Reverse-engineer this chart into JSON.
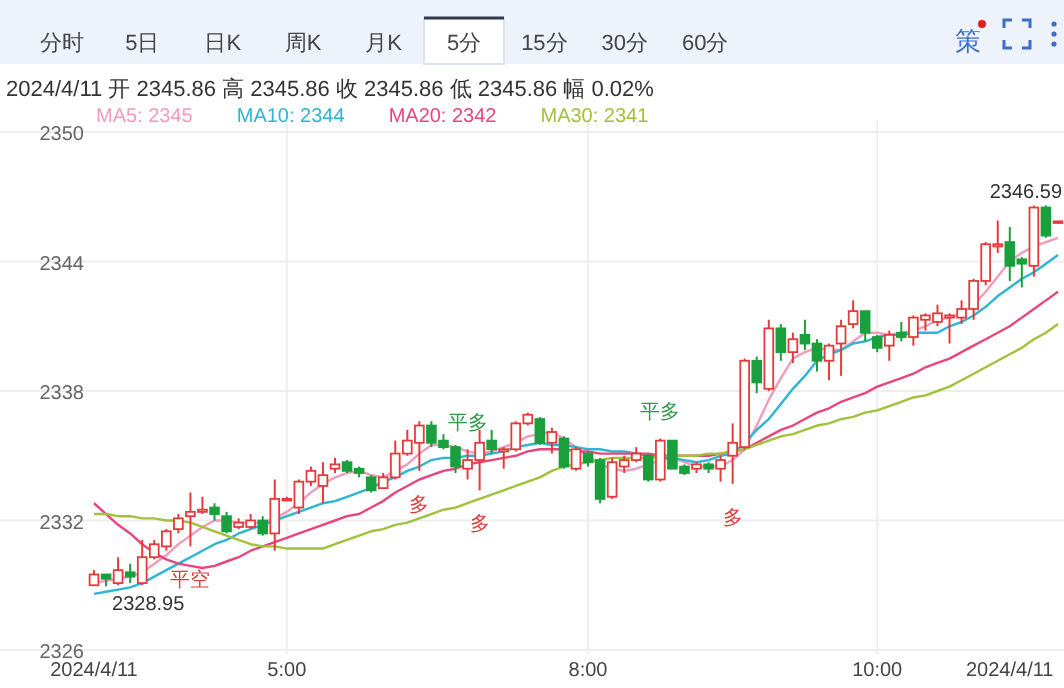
{
  "chart_data": {
    "type": "candlestick",
    "title": "2024/4/11  开 2345.86  高 2345.86  收 2345.86  低 2345.86  幅 0.02%",
    "categories": [
      "2024/4/11",
      null,
      null,
      null,
      null,
      null,
      null,
      null,
      null,
      null,
      null,
      null,
      null,
      null,
      null,
      null,
      "5:00",
      null,
      null,
      null,
      null,
      null,
      null,
      null,
      null,
      null,
      null,
      null,
      null,
      null,
      null,
      null,
      null,
      null,
      null,
      null,
      null,
      null,
      null,
      null,
      null,
      "8:00",
      null,
      null,
      null,
      null,
      null,
      null,
      null,
      null,
      null,
      null,
      null,
      null,
      null,
      null,
      null,
      null,
      null,
      null,
      null,
      null,
      null,
      null,
      null,
      "10:00",
      null,
      null,
      null,
      null,
      null,
      null,
      null,
      null,
      null,
      null,
      "2024/4/11",
      null,
      null,
      null,
      null
    ],
    "ohlc": [
      [
        2329.0,
        2329.7,
        2329.0,
        2329.5
      ],
      [
        2329.5,
        2329.5,
        2328.95,
        2329.3
      ],
      [
        2329.1,
        2330.3,
        2329.0,
        2329.7
      ],
      [
        2329.6,
        2330.0,
        2329.1,
        2329.4
      ],
      [
        2329.1,
        2331.1,
        2329.0,
        2330.3
      ],
      [
        2330.3,
        2331.1,
        2330.2,
        2330.9
      ],
      [
        2330.8,
        2331.6,
        2330.6,
        2331.5
      ],
      [
        2331.6,
        2332.3,
        2331.4,
        2332.1
      ],
      [
        2332.2,
        2333.3,
        2330.8,
        2332.4
      ],
      [
        2332.4,
        2333.1,
        2332.3,
        2332.5
      ],
      [
        2332.6,
        2332.8,
        2332.0,
        2332.3
      ],
      [
        2332.2,
        2332.4,
        2331.4,
        2331.5
      ],
      [
        2331.7,
        2332.1,
        2331.6,
        2331.9
      ],
      [
        2331.7,
        2332.3,
        2331.6,
        2332.0
      ],
      [
        2332.0,
        2332.2,
        2331.3,
        2331.4
      ],
      [
        2331.4,
        2333.9,
        2330.6,
        2333.0
      ],
      [
        2333.0,
        2333.1,
        2332.9,
        2333.0
      ],
      [
        2332.6,
        2333.9,
        2332.3,
        2333.8
      ],
      [
        2333.8,
        2334.5,
        2333.6,
        2334.3
      ],
      [
        2333.6,
        2334.7,
        2332.8,
        2334.1
      ],
      [
        2334.4,
        2334.9,
        2334.2,
        2334.6
      ],
      [
        2334.7,
        2334.8,
        2334.2,
        2334.3
      ],
      [
        2334.4,
        2334.5,
        2334.0,
        2334.2
      ],
      [
        2334.0,
        2334.1,
        2333.3,
        2333.4
      ],
      [
        2333.5,
        2334.2,
        2333.5,
        2334.0
      ],
      [
        2334.0,
        2335.7,
        2333.9,
        2335.1
      ],
      [
        2335.1,
        2336.2,
        2335.0,
        2335.7
      ],
      [
        2335.6,
        2336.6,
        2334.3,
        2336.4
      ],
      [
        2336.4,
        2336.6,
        2335.4,
        2335.6
      ],
      [
        2335.7,
        2336.0,
        2335.3,
        2335.4
      ],
      [
        2335.4,
        2335.5,
        2334.2,
        2334.5
      ],
      [
        2334.4,
        2335.3,
        2333.9,
        2334.8
      ],
      [
        2334.8,
        2336.2,
        2333.4,
        2335.6
      ],
      [
        2335.7,
        2336.2,
        2335.1,
        2335.3
      ],
      [
        2335.2,
        2335.4,
        2334.4,
        2335.3
      ],
      [
        2335.3,
        2336.6,
        2335.2,
        2336.5
      ],
      [
        2336.5,
        2337.0,
        2336.4,
        2336.9
      ],
      [
        2336.7,
        2336.8,
        2335.5,
        2335.6
      ],
      [
        2335.6,
        2336.3,
        2335.1,
        2336.1
      ],
      [
        2335.8,
        2335.9,
        2334.4,
        2334.5
      ],
      [
        2334.4,
        2335.4,
        2334.3,
        2335.3
      ],
      [
        2335.1,
        2335.2,
        2334.5,
        2334.7
      ],
      [
        2334.8,
        2334.9,
        2332.8,
        2333.0
      ],
      [
        2333.1,
        2334.9,
        2333.0,
        2334.7
      ],
      [
        2334.5,
        2335.0,
        2334.2,
        2334.8
      ],
      [
        2334.8,
        2335.4,
        2334.7,
        2335.1
      ],
      [
        2335.0,
        2335.1,
        2333.8,
        2333.9
      ],
      [
        2333.9,
        2335.8,
        2333.8,
        2335.7
      ],
      [
        2335.7,
        2335.7,
        2334.4,
        2334.4
      ],
      [
        2334.5,
        2334.6,
        2334.1,
        2334.2
      ],
      [
        2334.4,
        2334.7,
        2334.2,
        2334.6
      ],
      [
        2334.6,
        2334.7,
        2334.2,
        2334.4
      ],
      [
        2334.4,
        2335.0,
        2333.8,
        2334.8
      ],
      [
        2335.0,
        2336.5,
        2333.7,
        2335.6
      ],
      [
        2335.4,
        2339.5,
        2335.3,
        2339.4
      ],
      [
        2339.4,
        2339.6,
        2337.9,
        2338.4
      ],
      [
        2338.1,
        2341.3,
        2338.0,
        2340.9
      ],
      [
        2340.9,
        2341.1,
        2339.4,
        2339.8
      ],
      [
        2339.8,
        2340.7,
        2339.3,
        2340.4
      ],
      [
        2340.6,
        2341.3,
        2339.9,
        2340.2
      ],
      [
        2340.2,
        2340.4,
        2338.9,
        2339.4
      ],
      [
        2339.4,
        2340.2,
        2338.5,
        2340.1
      ],
      [
        2340.2,
        2341.3,
        2338.7,
        2341.0
      ],
      [
        2341.1,
        2342.2,
        2340.9,
        2341.7
      ],
      [
        2341.7,
        2341.7,
        2340.3,
        2340.7
      ],
      [
        2340.5,
        2340.6,
        2339.8,
        2340.0
      ],
      [
        2340.1,
        2340.8,
        2339.4,
        2340.6
      ],
      [
        2340.7,
        2341.2,
        2340.3,
        2340.5
      ],
      [
        2340.5,
        2341.5,
        2340.1,
        2341.4
      ],
      [
        2341.3,
        2341.6,
        2340.8,
        2341.5
      ],
      [
        2341.2,
        2342.0,
        2341.0,
        2341.6
      ],
      [
        2341.4,
        2341.6,
        2340.2,
        2341.5
      ],
      [
        2341.4,
        2342.2,
        2341.1,
        2341.8
      ],
      [
        2341.8,
        2343.2,
        2341.3,
        2343.1
      ],
      [
        2343.1,
        2344.9,
        2342.9,
        2344.8
      ],
      [
        2344.7,
        2345.9,
        2344.4,
        2344.8
      ],
      [
        2344.9,
        2345.6,
        2343.1,
        2343.8
      ],
      [
        2344.1,
        2344.2,
        2342.8,
        2343.9
      ],
      [
        2343.8,
        2346.59,
        2343.3,
        2346.5
      ],
      [
        2346.5,
        2346.6,
        2345.1,
        2345.2
      ],
      [
        2345.86,
        2345.86,
        2345.86,
        2345.86
      ]
    ],
    "series": [
      {
        "type": "line",
        "name": "MA5: 2345",
        "color": "#f29bbd",
        "values": [
          2329.1,
          2329.2,
          2329.3,
          2329.4,
          2329.6,
          2330.0,
          2330.4,
          2330.9,
          2331.3,
          2331.7,
          2332.0,
          2332.0,
          2331.9,
          2331.9,
          2331.9,
          2332.1,
          2332.4,
          2332.8,
          2333.3,
          2333.7,
          2334.0,
          2334.2,
          2334.3,
          2334.1,
          2334.0,
          2334.3,
          2334.6,
          2335.1,
          2335.5,
          2335.5,
          2335.4,
          2335.2,
          2335.1,
          2335.2,
          2335.4,
          2335.6,
          2335.9,
          2336.0,
          2336.1,
          2335.8,
          2335.4,
          2335.0,
          2334.6,
          2334.4,
          2334.3,
          2334.4,
          2334.6,
          2334.8,
          2334.9,
          2334.7,
          2334.5,
          2334.5,
          2334.5,
          2334.8,
          2335.3,
          2336.4,
          2337.6,
          2338.6,
          2339.5,
          2339.8,
          2340.0,
          2339.9,
          2339.9,
          2340.3,
          2340.7,
          2340.7,
          2340.6,
          2340.7,
          2340.8,
          2341.0,
          2341.3,
          2341.4,
          2341.6,
          2342.0,
          2342.6,
          2343.3,
          2344.0,
          2344.4,
          2344.7,
          2344.9,
          2345.1
        ]
      },
      {
        "type": "line",
        "name": "MA10: 2344",
        "color": "#2db5d3",
        "values": [
          2328.6,
          2328.7,
          2328.8,
          2328.9,
          2329.1,
          2329.4,
          2329.7,
          2330.0,
          2330.3,
          2330.6,
          2330.9,
          2331.1,
          2331.4,
          2331.6,
          2331.8,
          2332.0,
          2332.2,
          2332.4,
          2332.6,
          2332.8,
          2332.9,
          2333.1,
          2333.3,
          2333.5,
          2333.8,
          2334.0,
          2334.3,
          2334.5,
          2334.8,
          2334.9,
          2334.9,
          2335.0,
          2335.0,
          2335.1,
          2335.2,
          2335.4,
          2335.5,
          2335.6,
          2335.5,
          2335.5,
          2335.4,
          2335.3,
          2335.3,
          2335.2,
          2335.2,
          2335.1,
          2335.0,
          2334.9,
          2334.9,
          2334.8,
          2334.7,
          2334.8,
          2335.0,
          2335.1,
          2335.6,
          2336.2,
          2336.7,
          2337.4,
          2338.1,
          2338.7,
          2339.4,
          2339.7,
          2339.9,
          2340.2,
          2340.3,
          2340.5,
          2340.6,
          2340.6,
          2340.7,
          2340.7,
          2340.7,
          2341.0,
          2341.2,
          2341.5,
          2341.9,
          2342.4,
          2342.8,
          2343.2,
          2343.5,
          2343.9,
          2344.3
        ]
      },
      {
        "type": "line",
        "name": "MA20: 2342",
        "color": "#e8457f",
        "values": [
          2332.8,
          2332.3,
          2331.8,
          2331.4,
          2330.9,
          2330.5,
          2330.2,
          2330.0,
          2329.9,
          2329.8,
          2329.9,
          2330.1,
          2330.3,
          2330.6,
          2330.8,
          2331.0,
          2331.2,
          2331.4,
          2331.6,
          2331.8,
          2332.0,
          2332.2,
          2332.3,
          2332.6,
          2332.9,
          2333.3,
          2333.6,
          2333.9,
          2334.1,
          2334.3,
          2334.4,
          2334.6,
          2334.7,
          2334.8,
          2334.9,
          2335.0,
          2335.2,
          2335.3,
          2335.3,
          2335.3,
          2335.2,
          2335.2,
          2335.1,
          2335.1,
          2335.1,
          2335.1,
          2335.1,
          2335.0,
          2335.0,
          2335.0,
          2335.0,
          2335.0,
          2335.1,
          2335.2,
          2335.3,
          2335.6,
          2335.9,
          2336.2,
          2336.4,
          2336.7,
          2337.0,
          2337.2,
          2337.5,
          2337.7,
          2337.9,
          2338.2,
          2338.4,
          2338.6,
          2338.8,
          2339.1,
          2339.3,
          2339.5,
          2339.8,
          2340.1,
          2340.4,
          2340.7,
          2341.0,
          2341.4,
          2341.8,
          2342.2,
          2342.6
        ]
      },
      {
        "type": "line",
        "name": "MA30: 2341",
        "color": "#a2c13b",
        "values": [
          2332.3,
          2332.3,
          2332.2,
          2332.2,
          2332.1,
          2332.1,
          2332.0,
          2332.0,
          2331.9,
          2331.7,
          2331.5,
          2331.3,
          2331.1,
          2330.9,
          2330.8,
          2330.8,
          2330.7,
          2330.7,
          2330.7,
          2330.7,
          2330.9,
          2331.1,
          2331.3,
          2331.5,
          2331.6,
          2331.8,
          2331.9,
          2332.1,
          2332.3,
          2332.5,
          2332.6,
          2332.8,
          2333.0,
          2333.2,
          2333.4,
          2333.6,
          2333.8,
          2334.0,
          2334.3,
          2334.5,
          2334.6,
          2334.7,
          2334.8,
          2334.9,
          2334.9,
          2334.9,
          2334.9,
          2335.0,
          2335.0,
          2335.0,
          2335.0,
          2335.1,
          2335.1,
          2335.2,
          2335.3,
          2335.5,
          2335.7,
          2335.9,
          2336.0,
          2336.2,
          2336.4,
          2336.5,
          2336.7,
          2336.8,
          2337.0,
          2337.1,
          2337.3,
          2337.5,
          2337.7,
          2337.8,
          2338.0,
          2338.2,
          2338.5,
          2338.8,
          2339.1,
          2339.4,
          2339.7,
          2340.0,
          2340.4,
          2340.7,
          2341.1
        ]
      }
    ],
    "ylim": [
      2326,
      2350
    ],
    "yticks": [
      2326,
      2332,
      2338,
      2344,
      2350
    ],
    "grid": true,
    "legend": "top left",
    "annotations": [
      "分时",
      "5日",
      "日K",
      "周K",
      "月K",
      "5分",
      "15分",
      "30分",
      "60分",
      "策",
      {
        "text": "2328.95",
        "y": 2328.95
      },
      {
        "text": "2346.59",
        "y": 2346.59
      },
      {
        "text": "平空",
        "y": 2330.8
      },
      {
        "text": "平多",
        "y": 2335.3
      },
      {
        "text": "平多",
        "y": 2335.8
      },
      {
        "text": "多",
        "y": 2334.3
      },
      {
        "text": "多",
        "y": 2333.4
      },
      {
        "text": "多",
        "y": 2333.7
      }
    ]
  }
}
